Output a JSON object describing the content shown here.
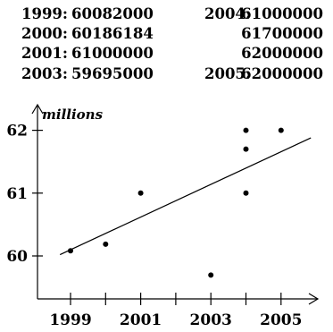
{
  "data_table": [
    {
      "label": "1999:",
      "value": "60082000"
    },
    {
      "label": "2000:",
      "value": "60186184"
    },
    {
      "label": "2001:",
      "value": "61000000"
    },
    {
      "label": "2003:",
      "value": "59695000"
    },
    {
      "label": "2004:",
      "value": "61000000"
    },
    {
      "label": "",
      "value": "61700000"
    },
    {
      "label": "",
      "value": "62000000"
    },
    {
      "label": "2005:",
      "value": "62000000"
    }
  ],
  "chart_data": {
    "type": "scatter",
    "ylabel": "millions",
    "xlabel": "",
    "x_tick_labels": [
      "1999",
      "2001",
      "2003",
      "2005"
    ],
    "x_ticks_minor": [
      2000,
      2002,
      2004
    ],
    "y_tick_labels": [
      "60",
      "61",
      "62"
    ],
    "xlim": [
      1998.4,
      2005.9
    ],
    "ylim": [
      59.5,
      62.2
    ],
    "points": [
      {
        "x": 1999,
        "y": 60.082
      },
      {
        "x": 2000,
        "y": 60.186184
      },
      {
        "x": 2001,
        "y": 61.0
      },
      {
        "x": 2003,
        "y": 59.695
      },
      {
        "x": 2004,
        "y": 61.0
      },
      {
        "x": 2004,
        "y": 61.7
      },
      {
        "x": 2004,
        "y": 62.0
      },
      {
        "x": 2005,
        "y": 62.0
      }
    ],
    "trendline": {
      "x": [
        1998.7,
        2005.85
      ],
      "y": [
        60.02,
        61.88
      ]
    },
    "grid": false,
    "legend": "none",
    "colors": {
      "points": "#000000",
      "line": "#000000",
      "axes": "#000000"
    }
  }
}
